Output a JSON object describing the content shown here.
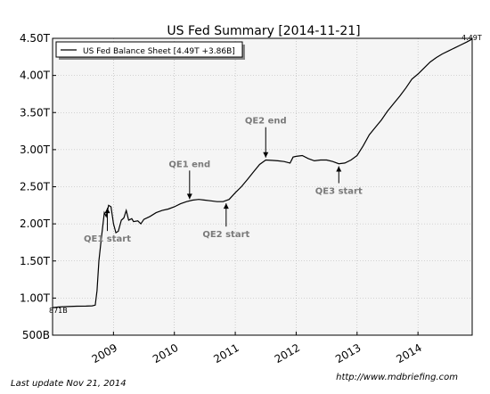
{
  "chart_data": {
    "type": "line",
    "title": "US Fed Summary  [2014-11-21]",
    "legend": "US Fed Balance Sheet [4.49T +3.86B]",
    "legend_position": "top-left",
    "grid": true,
    "y_ticks": [
      {
        "value": 500,
        "label": "500B"
      },
      {
        "value": 1000,
        "label": "1.00T"
      },
      {
        "value": 1500,
        "label": "1.50T"
      },
      {
        "value": 2000,
        "label": "2.00T"
      },
      {
        "value": 2500,
        "label": "2.50T"
      },
      {
        "value": 3000,
        "label": "3.00T"
      },
      {
        "value": 3500,
        "label": "3.50T"
      },
      {
        "value": 4000,
        "label": "4.00T"
      },
      {
        "value": 4500,
        "label": "4.50T"
      }
    ],
    "x_ticks": [
      {
        "value": 2009,
        "label": "2009"
      },
      {
        "value": 2010,
        "label": "2010"
      },
      {
        "value": 2011,
        "label": "2011"
      },
      {
        "value": 2012,
        "label": "2012"
      },
      {
        "value": 2013,
        "label": "2013"
      },
      {
        "value": 2014,
        "label": "2014"
      }
    ],
    "xlim": [
      2008.0,
      2014.89
    ],
    "ylim": [
      500,
      4500
    ],
    "start_label": "871B",
    "end_label": "4.49T",
    "annotations": [
      {
        "text": "QE1 start",
        "x": 2008.9,
        "y": 2240
      },
      {
        "text": "QE1 end",
        "x": 2010.25,
        "y": 2310
      },
      {
        "text": "QE2 start",
        "x": 2010.85,
        "y": 2300
      },
      {
        "text": "QE2 end",
        "x": 2011.5,
        "y": 2870
      },
      {
        "text": "QE3 start",
        "x": 2012.7,
        "y": 2800
      }
    ],
    "series": [
      {
        "values": [
          [
            2008.0,
            871
          ],
          [
            2008.1,
            880
          ],
          [
            2008.25,
            885
          ],
          [
            2008.4,
            890
          ],
          [
            2008.55,
            892
          ],
          [
            2008.65,
            895
          ],
          [
            2008.7,
            905
          ],
          [
            2008.73,
            1100
          ],
          [
            2008.76,
            1500
          ],
          [
            2008.8,
            1800
          ],
          [
            2008.85,
            2150
          ],
          [
            2008.88,
            2100
          ],
          [
            2008.92,
            2250
          ],
          [
            2008.96,
            2230
          ],
          [
            2009.0,
            2000
          ],
          [
            2009.04,
            1880
          ],
          [
            2009.08,
            1900
          ],
          [
            2009.13,
            2050
          ],
          [
            2009.17,
            2080
          ],
          [
            2009.21,
            2180
          ],
          [
            2009.25,
            2050
          ],
          [
            2009.3,
            2070
          ],
          [
            2009.33,
            2030
          ],
          [
            2009.4,
            2040
          ],
          [
            2009.45,
            2000
          ],
          [
            2009.5,
            2060
          ],
          [
            2009.6,
            2100
          ],
          [
            2009.7,
            2150
          ],
          [
            2009.8,
            2180
          ],
          [
            2009.9,
            2200
          ],
          [
            2010.0,
            2230
          ],
          [
            2010.1,
            2270
          ],
          [
            2010.2,
            2300
          ],
          [
            2010.3,
            2320
          ],
          [
            2010.4,
            2330
          ],
          [
            2010.5,
            2320
          ],
          [
            2010.6,
            2310
          ],
          [
            2010.7,
            2300
          ],
          [
            2010.8,
            2300
          ],
          [
            2010.9,
            2330
          ],
          [
            2011.0,
            2420
          ],
          [
            2011.1,
            2500
          ],
          [
            2011.2,
            2600
          ],
          [
            2011.3,
            2700
          ],
          [
            2011.4,
            2800
          ],
          [
            2011.5,
            2860
          ],
          [
            2011.6,
            2855
          ],
          [
            2011.7,
            2850
          ],
          [
            2011.8,
            2840
          ],
          [
            2011.9,
            2820
          ],
          [
            2011.95,
            2900
          ],
          [
            2012.0,
            2910
          ],
          [
            2012.1,
            2920
          ],
          [
            2012.2,
            2880
          ],
          [
            2012.3,
            2850
          ],
          [
            2012.4,
            2860
          ],
          [
            2012.5,
            2860
          ],
          [
            2012.6,
            2840
          ],
          [
            2012.7,
            2810
          ],
          [
            2012.8,
            2820
          ],
          [
            2012.9,
            2860
          ],
          [
            2013.0,
            2920
          ],
          [
            2013.1,
            3050
          ],
          [
            2013.2,
            3200
          ],
          [
            2013.3,
            3300
          ],
          [
            2013.4,
            3400
          ],
          [
            2013.5,
            3520
          ],
          [
            2013.6,
            3620
          ],
          [
            2013.7,
            3720
          ],
          [
            2013.8,
            3830
          ],
          [
            2013.9,
            3950
          ],
          [
            2014.0,
            4020
          ],
          [
            2014.1,
            4100
          ],
          [
            2014.2,
            4180
          ],
          [
            2014.3,
            4240
          ],
          [
            2014.4,
            4290
          ],
          [
            2014.5,
            4330
          ],
          [
            2014.6,
            4370
          ],
          [
            2014.7,
            4410
          ],
          [
            2014.8,
            4450
          ],
          [
            2014.89,
            4490
          ]
        ]
      }
    ]
  },
  "footer": {
    "last_update": "Last update Nov 21, 2014",
    "source": "http://www.mdbriefing.com"
  }
}
